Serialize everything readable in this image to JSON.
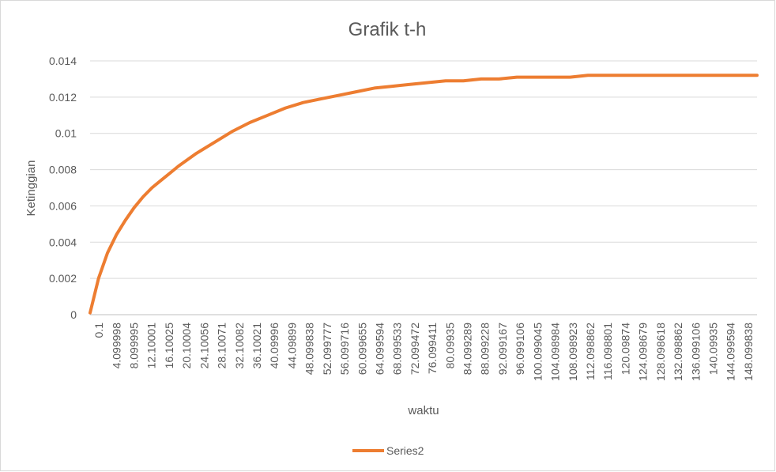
{
  "chart_data": {
    "type": "line",
    "title": "Grafik t-h",
    "xlabel": "waktu",
    "ylabel": "Ketinggian",
    "xlim": [
      0.1,
      150
    ],
    "ylim": [
      0,
      0.014
    ],
    "y_ticks": [
      "0",
      "0.002",
      "0.004",
      "0.006",
      "0.008",
      "0.01",
      "0.012",
      "0.014"
    ],
    "x_ticks": [
      "0.1",
      "4.099998",
      "8.099995",
      "12.10001",
      "16.10025",
      "20.10004",
      "24.10056",
      "28.10071",
      "32.10082",
      "36.10021",
      "40.09996",
      "44.09899",
      "48.099838",
      "52.099777",
      "56.099716",
      "60.099655",
      "64.099594",
      "68.099533",
      "72.099472",
      "76.099411",
      "80.09935",
      "84.099289",
      "88.099228",
      "92.099167",
      "96.099106",
      "100.099045",
      "104.098984",
      "108.098923",
      "112.098862",
      "116.098801",
      "120.09874",
      "124.098679",
      "128.098618",
      "132.098862",
      "136.099106",
      "140.09935",
      "144.099594",
      "148.099838"
    ],
    "grid": true,
    "legend_position": "bottom",
    "series": [
      {
        "name": "Series2",
        "color": "#ed7d31",
        "x": [
          0.1,
          2,
          4,
          6,
          8,
          10,
          12,
          14,
          16,
          18,
          20,
          24,
          28,
          32,
          36,
          40,
          44,
          48,
          52,
          56,
          60,
          64,
          68,
          72,
          76,
          80,
          84,
          88,
          92,
          96,
          100,
          104,
          108,
          112,
          116,
          120,
          124,
          128,
          132,
          136,
          140,
          144,
          148,
          150
        ],
        "values": [
          0.0001,
          0.002,
          0.0034,
          0.0044,
          0.0052,
          0.0059,
          0.0065,
          0.007,
          0.0074,
          0.0078,
          0.0082,
          0.0089,
          0.0095,
          0.0101,
          0.0106,
          0.011,
          0.0114,
          0.0117,
          0.0119,
          0.0121,
          0.0123,
          0.0125,
          0.0126,
          0.0127,
          0.0128,
          0.0129,
          0.0129,
          0.013,
          0.013,
          0.0131,
          0.0131,
          0.0131,
          0.0131,
          0.0132,
          0.0132,
          0.0132,
          0.0132,
          0.0132,
          0.0132,
          0.0132,
          0.0132,
          0.0132,
          0.0132,
          0.0132
        ]
      }
    ]
  }
}
